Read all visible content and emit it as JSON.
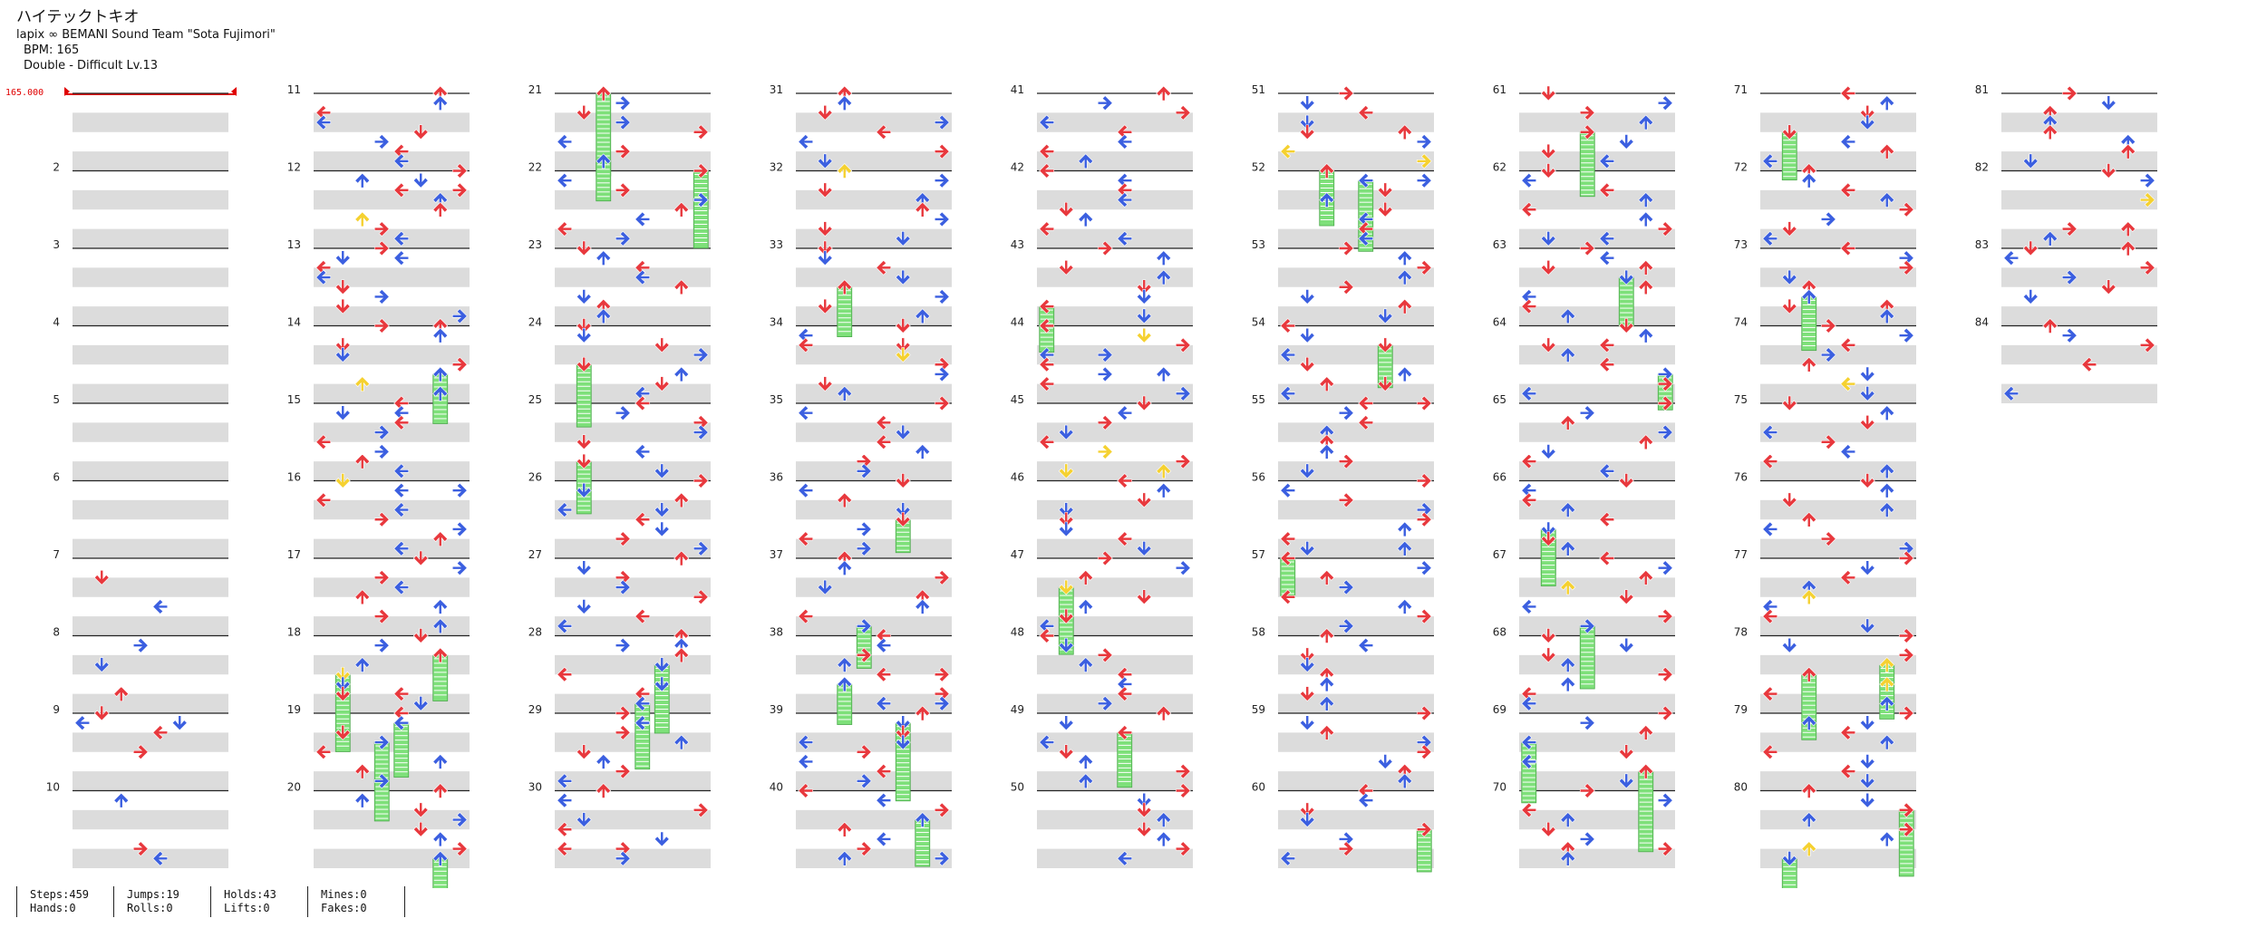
{
  "header": {
    "title": "ハイテックトキオ",
    "artist": "lapix ∞ BEMANI Sound Team \"Sota Fujimori\"",
    "bpm": "BPM: 165",
    "difficulty": "Double - Difficult  Lv.13"
  },
  "bpm_marker": "165.000",
  "measures": {
    "numbers": [
      "2",
      "3",
      "4",
      "5",
      "6",
      "7",
      "8",
      "9",
      "10",
      "11",
      "12",
      "13",
      "14",
      "15",
      "16",
      "17",
      "18",
      "19",
      "20",
      "21",
      "22",
      "23",
      "24",
      "25",
      "26",
      "27",
      "28",
      "29",
      "30",
      "31",
      "32",
      "33",
      "34",
      "35",
      "36",
      "37",
      "38",
      "39",
      "40",
      "41",
      "42",
      "43",
      "44",
      "45",
      "46",
      "47",
      "48",
      "49",
      "50",
      "51",
      "52",
      "53",
      "54",
      "55",
      "56",
      "57",
      "58",
      "59",
      "60",
      "61",
      "62",
      "63",
      "64",
      "65",
      "66",
      "67",
      "68",
      "69",
      "70",
      "71",
      "72",
      "73",
      "74",
      "75",
      "76",
      "77",
      "78",
      "79",
      "80",
      "81",
      "82",
      "83",
      "84"
    ],
    "total": 84,
    "per_column": 10
  },
  "colors": {
    "quarter_note": "#e8383d",
    "eighth_note": "#3b5fe0",
    "sixteenth_note": "#f5d130",
    "hold": "#7ee07a",
    "stripe": "#dcdcdc",
    "measure_line": "#222222",
    "bpm": "#e00000"
  },
  "icons": {
    "left": "arrow-left-icon",
    "down": "arrow-down-icon",
    "up": "arrow-up-icon",
    "right": "arrow-right-icon"
  },
  "stats": {
    "steps": "Steps:459",
    "hands": "Hands:0",
    "jumps": "Jumps:19",
    "rolls": "Rolls:0",
    "holds": "Holds:43",
    "lifts": "Lifts:0",
    "mines": "Mines:0",
    "fakes": "Fakes:0"
  }
}
